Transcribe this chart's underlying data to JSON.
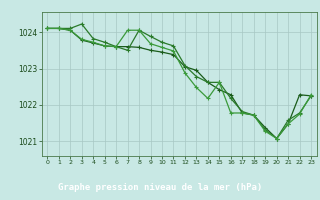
{
  "title": "Graphe pression niveau de la mer (hPa)",
  "bg_color": "#c8e8e4",
  "plot_bg_color": "#c8e8e4",
  "label_bg_color": "#2a6632",
  "label_text_color": "#ffffff",
  "grid_color": "#a8c8c4",
  "line_color_1": "#1a5c1a",
  "line_color_2": "#2a7a2a",
  "line_color_3": "#3a9a3a",
  "spine_color": "#4a7a4a",
  "tick_color": "#1a4a1a",
  "xlim": [
    -0.5,
    23.5
  ],
  "ylim": [
    1020.6,
    1024.55
  ],
  "yticks": [
    1021,
    1022,
    1023,
    1024
  ],
  "xticks": [
    0,
    1,
    2,
    3,
    4,
    5,
    6,
    7,
    8,
    9,
    10,
    11,
    12,
    13,
    14,
    15,
    16,
    17,
    18,
    19,
    20,
    21,
    22,
    23
  ],
  "series1_x": [
    0,
    1,
    2,
    3,
    4,
    5,
    6,
    7,
    8,
    9,
    10,
    11,
    12,
    13,
    14,
    15,
    16,
    17,
    18,
    19,
    20,
    21,
    22,
    23
  ],
  "series1_y": [
    1024.1,
    1024.1,
    1024.05,
    1023.78,
    1023.7,
    1023.62,
    1023.6,
    1023.6,
    1023.58,
    1023.5,
    1023.45,
    1023.38,
    1023.05,
    1022.95,
    1022.62,
    1022.42,
    1022.28,
    1021.78,
    1021.72,
    1021.38,
    1021.08,
    1021.48,
    1022.28,
    1022.25
  ],
  "series2_x": [
    0,
    1,
    2,
    3,
    4,
    5,
    6,
    7,
    8,
    9,
    10,
    11,
    12,
    13,
    14,
    15,
    16,
    17,
    18,
    19,
    20,
    21,
    22,
    23
  ],
  "series2_y": [
    1024.1,
    1024.1,
    1024.1,
    1024.22,
    1023.82,
    1023.72,
    1023.6,
    1023.5,
    1024.05,
    1023.88,
    1023.72,
    1023.62,
    1023.08,
    1022.78,
    1022.62,
    1022.62,
    1022.18,
    1021.82,
    1021.72,
    1021.32,
    1021.08,
    1021.58,
    1021.78,
    1022.25
  ],
  "series3_x": [
    0,
    1,
    2,
    3,
    4,
    5,
    6,
    7,
    8,
    9,
    10,
    11,
    12,
    13,
    14,
    15,
    16,
    17,
    18,
    19,
    20,
    21,
    22,
    23
  ],
  "series3_y": [
    1024.1,
    1024.1,
    1024.05,
    1023.8,
    1023.72,
    1023.62,
    1023.6,
    1024.05,
    1024.05,
    1023.68,
    1023.58,
    1023.48,
    1022.88,
    1022.48,
    1022.18,
    1022.62,
    1021.78,
    1021.78,
    1021.72,
    1021.28,
    1021.08,
    1021.48,
    1021.75,
    1022.28
  ]
}
